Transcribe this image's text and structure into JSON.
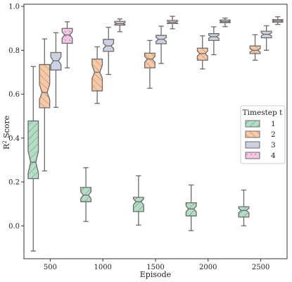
{
  "chart_data": {
    "type": "box",
    "notched": true,
    "xlabel": "Episode",
    "ylabel_base": "R",
    "ylabel_sup": "2",
    "ylabel_rest": " Score",
    "ylim": [
      -0.15,
      1.01
    ],
    "yticks": [
      0.0,
      0.2,
      0.4,
      0.6,
      0.8,
      1.0
    ],
    "yticklabels": [
      "0.0",
      "0.2",
      "0.4",
      "0.6",
      "0.8",
      "1.0"
    ],
    "categories": [
      "500",
      "1000",
      "1500",
      "2000",
      "2500"
    ],
    "legend": {
      "title": "Timestep t",
      "position": "center-right",
      "entries": [
        "1",
        "2",
        "3",
        "4"
      ]
    },
    "series": [
      {
        "name": "1",
        "color": "#b5dcc6",
        "hatch": "diagonal",
        "boxes": [
          {
            "min": -0.115,
            "q1": 0.215,
            "median": 0.29,
            "q3": 0.478,
            "max": 0.726,
            "notch_low": 0.24,
            "notch_high": 0.34
          },
          {
            "min": 0.02,
            "q1": 0.11,
            "median": 0.14,
            "q3": 0.175,
            "max": 0.265,
            "notch_low": 0.125,
            "notch_high": 0.155
          },
          {
            "min": 0.003,
            "q1": 0.065,
            "median": 0.11,
            "q3": 0.13,
            "max": 0.228,
            "notch_low": 0.095,
            "notch_high": 0.123
          },
          {
            "min": -0.022,
            "q1": 0.045,
            "median": 0.077,
            "q3": 0.105,
            "max": 0.186,
            "notch_low": 0.064,
            "notch_high": 0.09
          },
          {
            "min": 0.0,
            "q1": 0.04,
            "median": 0.07,
            "q3": 0.087,
            "max": 0.163,
            "notch_low": 0.06,
            "notch_high": 0.08
          }
        ]
      },
      {
        "name": "2",
        "color": "#f7c9a6",
        "hatch": "backdiagonal",
        "boxes": [
          {
            "min": 0.25,
            "q1": 0.538,
            "median": 0.608,
            "q3": 0.735,
            "max": 0.852,
            "notch_low": 0.575,
            "notch_high": 0.645
          },
          {
            "min": 0.558,
            "q1": 0.615,
            "median": 0.7,
            "q3": 0.76,
            "max": 0.816,
            "notch_low": 0.672,
            "notch_high": 0.732
          },
          {
            "min": 0.627,
            "q1": 0.72,
            "median": 0.76,
            "q3": 0.787,
            "max": 0.845,
            "notch_low": 0.745,
            "notch_high": 0.772
          },
          {
            "min": 0.715,
            "q1": 0.755,
            "median": 0.785,
            "q3": 0.81,
            "max": 0.866,
            "notch_low": 0.774,
            "notch_high": 0.796
          },
          {
            "min": 0.755,
            "q1": 0.785,
            "median": 0.8,
            "q3": 0.82,
            "max": 0.871,
            "notch_low": 0.792,
            "notch_high": 0.808
          }
        ]
      },
      {
        "name": "3",
        "color": "#cdd2e3",
        "hatch": "none",
        "boxes": [
          {
            "min": 0.54,
            "q1": 0.71,
            "median": 0.752,
            "q3": 0.79,
            "max": 0.88,
            "notch_low": 0.735,
            "notch_high": 0.77
          },
          {
            "min": 0.69,
            "q1": 0.795,
            "median": 0.82,
            "q3": 0.85,
            "max": 0.905,
            "notch_low": 0.808,
            "notch_high": 0.832
          },
          {
            "min": 0.74,
            "q1": 0.83,
            "median": 0.85,
            "q3": 0.868,
            "max": 0.91,
            "notch_low": 0.841,
            "notch_high": 0.859
          },
          {
            "min": 0.78,
            "q1": 0.845,
            "median": 0.862,
            "q3": 0.876,
            "max": 0.907,
            "notch_low": 0.855,
            "notch_high": 0.869
          },
          {
            "min": 0.8,
            "q1": 0.857,
            "median": 0.873,
            "q3": 0.887,
            "max": 0.912,
            "notch_low": 0.866,
            "notch_high": 0.88
          }
        ]
      },
      {
        "name": "4",
        "color": "#f3c6e4",
        "hatch": "dots",
        "boxes": [
          {
            "min": 0.72,
            "q1": 0.832,
            "median": 0.87,
            "q3": 0.9,
            "max": 0.93,
            "notch_low": 0.855,
            "notch_high": 0.885
          },
          {
            "min": 0.885,
            "q1": 0.915,
            "median": 0.922,
            "q3": 0.932,
            "max": 0.943,
            "notch_low": 0.918,
            "notch_high": 0.926
          },
          {
            "min": 0.898,
            "q1": 0.922,
            "median": 0.928,
            "q3": 0.936,
            "max": 0.955,
            "notch_low": 0.924,
            "notch_high": 0.932
          },
          {
            "min": 0.908,
            "q1": 0.926,
            "median": 0.931,
            "q3": 0.938,
            "max": 0.947,
            "notch_low": 0.928,
            "notch_high": 0.934
          },
          {
            "min": 0.918,
            "q1": 0.928,
            "median": 0.934,
            "q3": 0.94,
            "max": 0.953,
            "notch_low": 0.931,
            "notch_high": 0.937
          }
        ]
      }
    ]
  }
}
